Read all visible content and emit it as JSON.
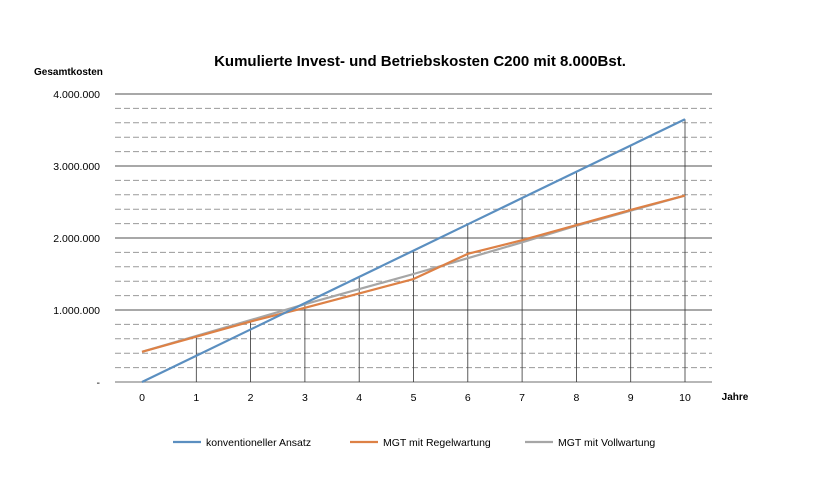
{
  "chart_data": {
    "type": "line",
    "title": "Kumulierte Invest- und Betriebskosten C200 mit 8.000Bst.",
    "xlabel": "Jahre",
    "ylabel": "Gesamtkosten",
    "x": [
      0,
      1,
      2,
      3,
      4,
      5,
      6,
      7,
      8,
      9,
      10
    ],
    "x_tick_labels": [
      "0",
      "1",
      "2",
      "3",
      "4",
      "5",
      "6",
      "7",
      "8",
      "9",
      "10"
    ],
    "ylim": [
      0,
      4000000
    ],
    "y_ticks": [
      0,
      1000000,
      2000000,
      3000000,
      4000000
    ],
    "y_tick_labels": [
      "-",
      "1.000.000",
      "2.000.000",
      "3.000.000",
      "4.000.000"
    ],
    "grid": {
      "major": true,
      "minor_dashed": true,
      "minor_step": 200000
    },
    "legend_position": "bottom",
    "series": [
      {
        "name": "konventioneller Ansatz",
        "color": "#5b8fc0",
        "values": [
          0,
          365000,
          730000,
          1095000,
          1460000,
          1825000,
          2190000,
          2555000,
          2920000,
          3285000,
          3650000
        ]
      },
      {
        "name": "MGT mit Regelwartung",
        "color": "#dd8146",
        "values": [
          420000,
          630000,
          840000,
          1030000,
          1230000,
          1430000,
          1780000,
          1970000,
          2180000,
          2390000,
          2590000
        ]
      },
      {
        "name": "MGT mit Vollwartung",
        "color": "#a6a6a6",
        "values": [
          420000,
          640000,
          860000,
          1080000,
          1290000,
          1500000,
          1720000,
          1940000,
          2170000,
          2380000,
          2590000
        ]
      }
    ]
  }
}
